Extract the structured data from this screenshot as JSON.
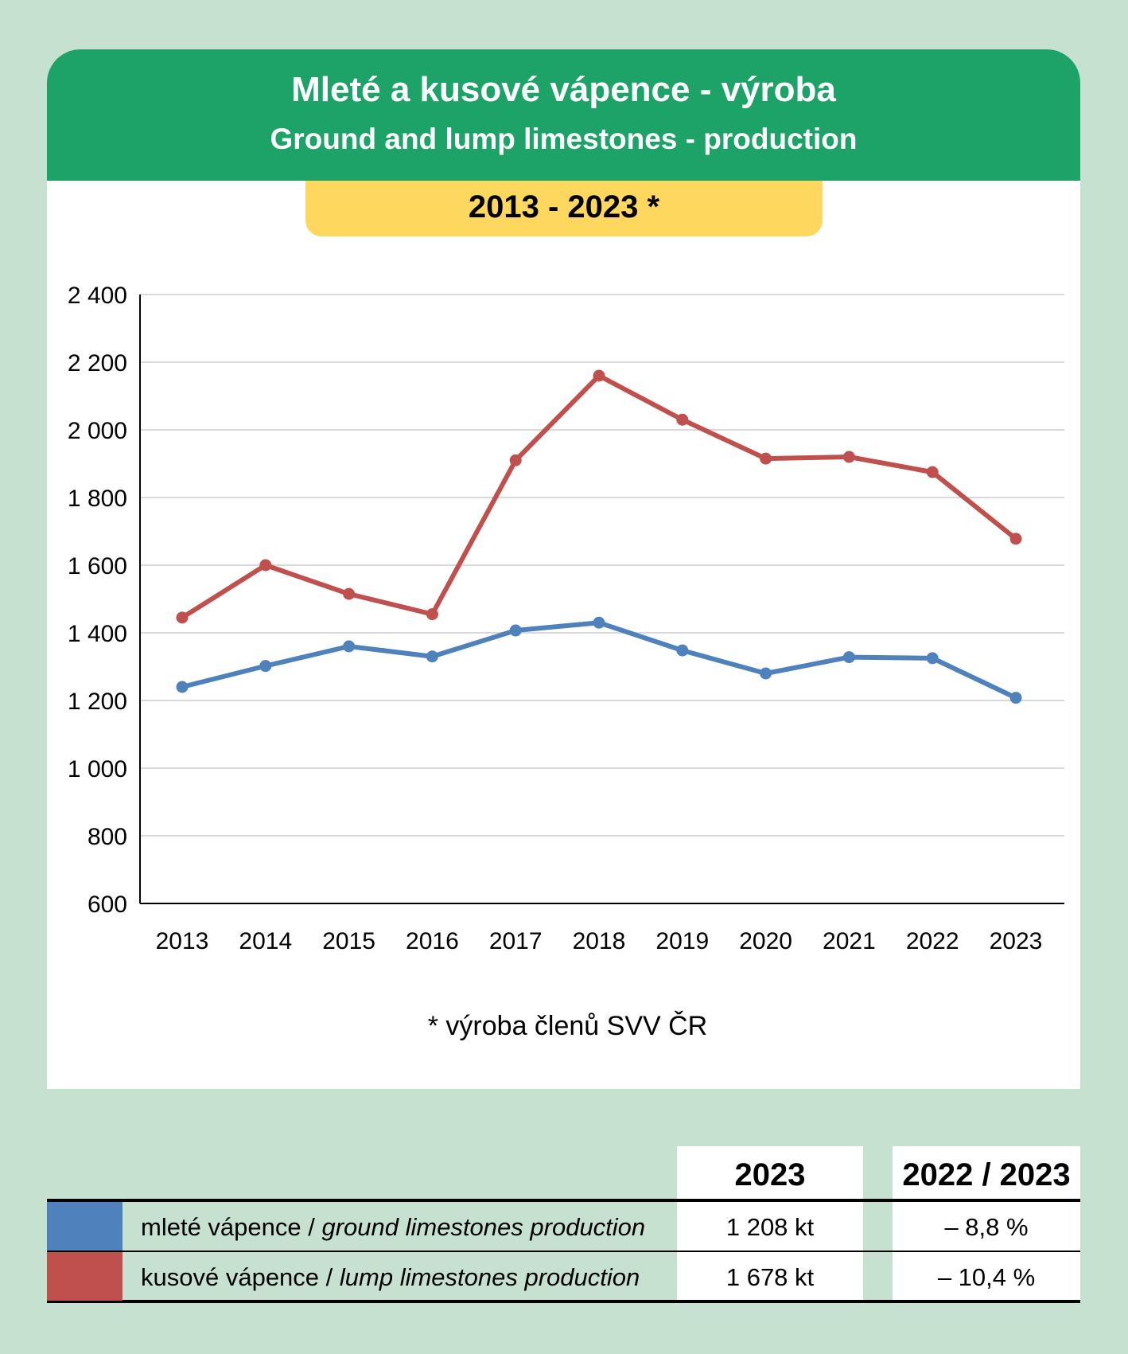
{
  "header": {
    "title_cz": "Mleté a kusové vápence - výroba",
    "title_en": "Ground and lump limestones - production",
    "period": "2013 - 2023 *"
  },
  "footnote": "* výroba členů SVV ČR",
  "chart_data": {
    "type": "line",
    "title": "Mleté a kusové vápence - výroba / Ground and lump limestones - production",
    "categories": [
      "2013",
      "2014",
      "2015",
      "2016",
      "2017",
      "2018",
      "2019",
      "2020",
      "2021",
      "2022",
      "2023"
    ],
    "y_ticks": [
      "600",
      "800",
      "1 000",
      "1 200",
      "1 400",
      "1 600",
      "1 800",
      "2 000",
      "2 200",
      "2 400"
    ],
    "ylim": [
      600,
      2400
    ],
    "grid": true,
    "series": [
      {
        "name": "mleté vápence / ground limestones production",
        "color": "#4f81bd",
        "values": [
          1240,
          1302,
          1360,
          1330,
          1407,
          1430,
          1348,
          1280,
          1328,
          1325,
          1208
        ]
      },
      {
        "name": "kusové vápence / lump limestones production",
        "color": "#c0504d",
        "values": [
          1445,
          1600,
          1515,
          1455,
          1910,
          2160,
          2030,
          1915,
          1920,
          1875,
          1678
        ]
      }
    ]
  },
  "table": {
    "col_2023": "2023",
    "col_change": "2022 / 2023",
    "rows": [
      {
        "swatch_color": "#4f81bd",
        "label_cz": "mleté vápence / ",
        "label_en": "ground limestones production",
        "value": "1 208 kt",
        "change": "– 8,8 %"
      },
      {
        "swatch_color": "#c0504d",
        "label_cz": "kusové vápence / ",
        "label_en": "lump limestones production",
        "value": "1 678 kt",
        "change": "– 10,4 %"
      }
    ]
  }
}
